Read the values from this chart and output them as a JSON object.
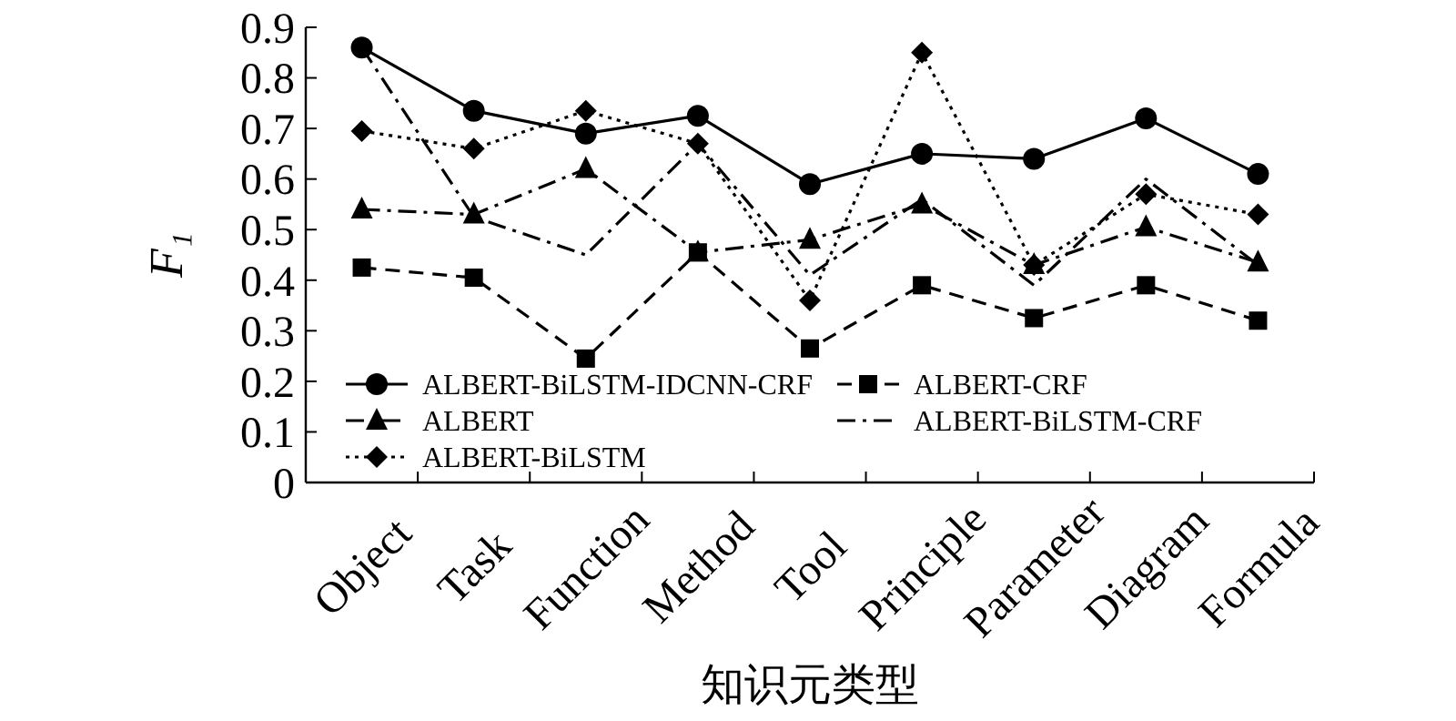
{
  "chart_data": {
    "type": "line",
    "xlabel": "知识元类型",
    "ylabel": "F₁",
    "categories": [
      "Object",
      "Task",
      "Function",
      "Method",
      "Tool",
      "Principle",
      "Parameter",
      "Diagram",
      "Formula"
    ],
    "ylim": [
      0,
      0.9
    ],
    "yticks": [
      0,
      0.1,
      0.2,
      0.3,
      0.4,
      0.5,
      0.6,
      0.7,
      0.8,
      0.9
    ],
    "grid": false,
    "legend": "bottom left",
    "series": [
      {
        "name": "ALBERT-BiLSTM-IDCNN-CRF",
        "color": "#000000",
        "marker": "circle",
        "line_style": "solid",
        "values": [
          0.86,
          0.735,
          0.69,
          0.725,
          0.59,
          0.65,
          0.64,
          0.72,
          0.61
        ]
      },
      {
        "name": "ALBERT",
        "color": "#000000",
        "marker": "triangle",
        "line_style": "dashdot",
        "values": [
          0.54,
          0.53,
          0.62,
          0.455,
          0.48,
          0.55,
          0.43,
          0.505,
          0.435
        ]
      },
      {
        "name": "ALBERT-BiLSTM",
        "color": "#000000",
        "marker": "diamond",
        "line_style": "dotted",
        "values": [
          0.695,
          0.66,
          0.735,
          0.67,
          0.36,
          0.85,
          0.43,
          0.57,
          0.53
        ]
      },
      {
        "name": "ALBERT-CRF",
        "color": "#000000",
        "marker": "square",
        "line_style": "dashed",
        "values": [
          0.425,
          0.405,
          0.245,
          0.455,
          0.265,
          0.39,
          0.325,
          0.39,
          0.32
        ]
      },
      {
        "name": "ALBERT-BiLSTM-CRF",
        "color": "#000000",
        "marker": "none",
        "line_style": "dashdot",
        "values": [
          0.86,
          0.525,
          0.45,
          0.67,
          0.41,
          0.56,
          0.39,
          0.6,
          0.43
        ]
      }
    ]
  }
}
